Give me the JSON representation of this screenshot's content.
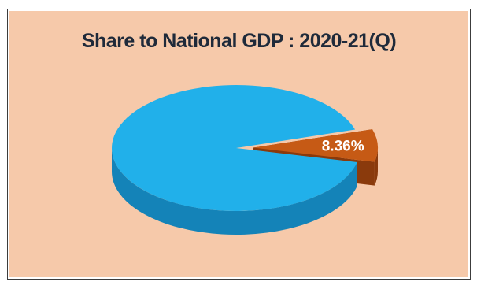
{
  "chart_data": {
    "type": "pie",
    "title": "Share to National GDP : 2020-21(Q)",
    "slices": [
      {
        "label": "8.36%",
        "value": 8.36,
        "color": "#c65a15",
        "side_color": "#8a3a0c",
        "exploded": true
      },
      {
        "label": "",
        "value": 91.64,
        "color": "#21b0ea",
        "side_color": "#1483b8",
        "exploded": false
      }
    ]
  }
}
